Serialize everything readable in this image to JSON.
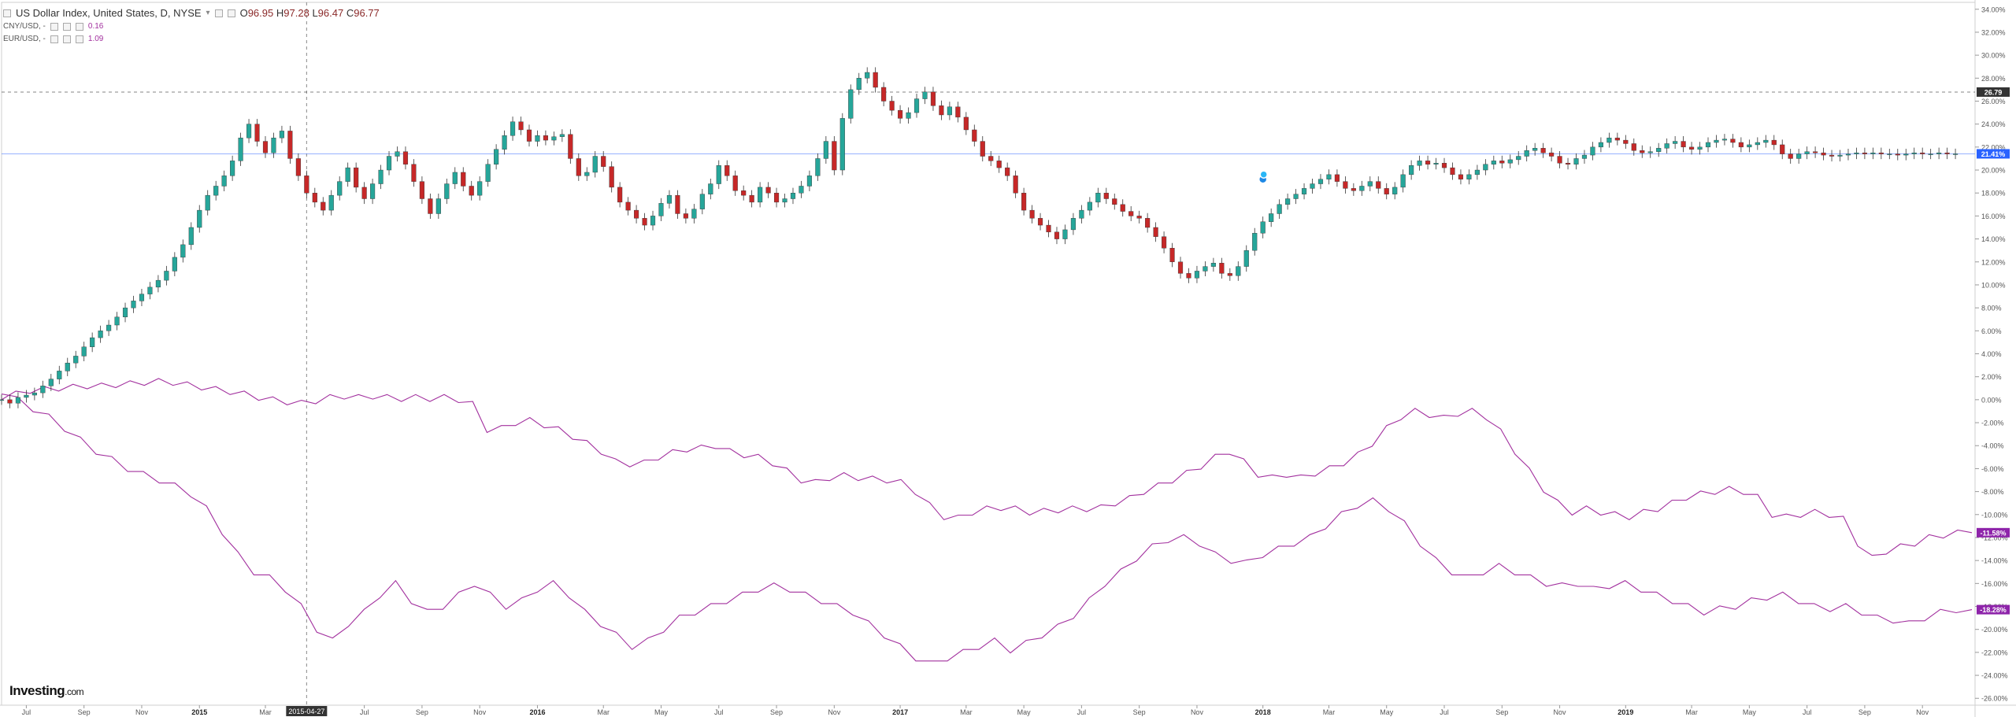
{
  "legend": {
    "main": {
      "title": "US Dollar Index, United States, D, NYSE",
      "open_label": "O",
      "open": "96.95",
      "high_label": "H",
      "high": "97.28",
      "low_label": "L",
      "low": "96.47",
      "close_label": "C",
      "close": "96.77"
    },
    "series": [
      {
        "label": "CNY/USD, -",
        "value": "0.16"
      },
      {
        "label": "EUR/USD, -",
        "value": "1.09"
      }
    ]
  },
  "watermark": {
    "brand": "Investing",
    "suffix": ".com"
  },
  "crosshair": {
    "x_label": "2015-04-27"
  },
  "chart_data": {
    "type": "line",
    "y_unit": "%",
    "y_range": [
      -26,
      34
    ],
    "y_ticks": [
      "34.00%",
      "32.00%",
      "30.00%",
      "28.00%",
      "26.00%",
      "24.00%",
      "22.00%",
      "20.00%",
      "18.00%",
      "16.00%",
      "14.00%",
      "12.00%",
      "10.00%",
      "8.00%",
      "6.00%",
      "4.00%",
      "2.00%",
      "0.00%",
      "-2.00%",
      "-4.00%",
      "-6.00%",
      "-8.00%",
      "-10.00%",
      "-12.00%",
      "-14.00%",
      "-16.00%",
      "-18.00%",
      "-20.00%",
      "-22.00%",
      "-24.00%",
      "-26.00%"
    ],
    "x_ticks": [
      "Jul",
      "Sep",
      "Nov",
      "2015",
      "Mar",
      "2015-04-27",
      "Jul",
      "Sep",
      "Nov",
      "2016",
      "Mar",
      "May",
      "Jul",
      "Sep",
      "Nov",
      "2017",
      "Mar",
      "May",
      "Jul",
      "Sep",
      "Nov",
      "2018",
      "Mar",
      "May",
      "Jul",
      "Sep",
      "Nov",
      "2019",
      "Mar",
      "May",
      "Jul",
      "Sep",
      "Nov"
    ],
    "x_tick_index": [
      3,
      10,
      17,
      24,
      32,
      37,
      44,
      51,
      58,
      65,
      73,
      80,
      87,
      94,
      101,
      109,
      117,
      124,
      131,
      138,
      145,
      153,
      161,
      168,
      175,
      182,
      189,
      197,
      205,
      212,
      219,
      226,
      233
    ],
    "x_count": 240,
    "markers": [
      {
        "label": "26.79",
        "value": 26.79,
        "style": "dashed",
        "color": "#333333"
      },
      {
        "label": "21.41%",
        "value": 21.41,
        "style": "solid",
        "color": "#2962ff"
      }
    ],
    "last_labels": [
      {
        "label": "-11.58%",
        "value": -11.58,
        "color": "#8e24aa"
      },
      {
        "label": "-18.28%",
        "value": -18.28,
        "color": "#8e24aa"
      }
    ],
    "series": [
      {
        "type": "candlestick",
        "up_color": "#26a69a",
        "down_color": "#c62828",
        "values": [
          0.0,
          -0.3,
          0.2,
          0.4,
          0.6,
          1.2,
          1.8,
          2.5,
          3.2,
          3.8,
          4.6,
          5.4,
          6.0,
          6.5,
          7.2,
          8.0,
          8.6,
          9.2,
          9.8,
          10.4,
          11.2,
          12.4,
          13.5,
          15.0,
          16.5,
          17.8,
          18.6,
          19.5,
          20.8,
          22.8,
          24.0,
          22.5,
          21.5,
          22.8,
          23.4,
          21.0,
          19.5,
          18.0,
          17.2,
          16.5,
          17.8,
          19.0,
          20.2,
          18.5,
          17.5,
          18.8,
          20.0,
          21.2,
          21.6,
          20.5,
          19.0,
          17.5,
          16.2,
          17.5,
          18.8,
          19.8,
          18.6,
          17.8,
          19.0,
          20.5,
          21.8,
          23.0,
          24.2,
          23.5,
          22.5,
          23.0,
          22.6,
          22.9,
          23.1,
          21.0,
          19.5,
          19.8,
          21.2,
          20.3,
          18.5,
          17.2,
          16.5,
          15.8,
          15.2,
          16.0,
          17.1,
          17.8,
          16.2,
          15.8,
          16.6,
          17.9,
          18.8,
          20.4,
          19.5,
          18.2,
          17.8,
          17.2,
          18.5,
          18.0,
          17.2,
          17.5,
          18.0,
          18.6,
          19.5,
          21.0,
          22.5,
          20.0,
          24.5,
          27.0,
          28.0,
          28.5,
          27.2,
          26.0,
          25.2,
          24.5,
          25.0,
          26.2,
          26.8,
          25.6,
          24.8,
          25.5,
          24.6,
          23.5,
          22.5,
          21.2,
          20.8,
          20.2,
          19.5,
          18.0,
          16.5,
          15.8,
          15.2,
          14.6,
          14.0,
          14.8,
          15.8,
          16.5,
          17.2,
          18.0,
          17.5,
          17.0,
          16.4,
          16.0,
          15.8,
          15.0,
          14.2,
          13.2,
          12.0,
          11.0,
          10.6,
          11.2,
          11.6,
          11.9,
          11.0,
          10.8,
          11.6,
          13.0,
          14.5,
          15.5,
          16.2,
          17.0,
          17.5,
          17.9,
          18.4,
          18.8,
          19.2,
          19.6,
          19.0,
          18.4,
          18.2,
          18.6,
          19.0,
          18.4,
          17.9,
          18.5,
          19.6,
          20.4,
          20.8,
          20.5,
          20.6,
          20.2,
          19.6,
          19.2,
          19.6,
          20.0,
          20.5,
          20.8,
          20.6,
          20.9,
          21.2,
          21.7,
          21.9,
          21.5,
          21.2,
          20.6,
          20.5,
          21.0,
          21.3,
          22.0,
          22.4,
          22.8,
          22.6,
          22.3,
          21.7,
          21.5,
          21.6,
          21.9,
          22.3,
          22.5,
          22.0,
          21.8,
          22.0,
          22.4,
          22.6,
          22.7,
          22.4,
          22.0,
          22.2,
          22.4,
          22.6,
          22.2,
          21.4,
          21.0,
          21.4,
          21.6,
          21.5,
          21.3,
          21.2,
          21.3,
          21.4,
          21.5,
          21.4,
          21.5,
          21.4,
          21.4,
          21.3,
          21.4,
          21.5,
          21.4,
          21.4,
          21.5,
          21.4,
          21.41
        ]
      },
      {
        "type": "line",
        "name": "CNY/USD",
        "color": "#a2309e",
        "values": [
          0.0,
          0.5,
          0.8,
          0.9,
          1.0,
          1.1,
          1.2,
          1.2,
          1.3,
          1.4,
          1.5,
          1.6,
          1.5,
          1.3,
          1.1,
          0.9,
          0.7,
          0.5,
          0.2,
          0.0,
          -0.2,
          -0.3,
          -0.1,
          0.2,
          0.3,
          0.2,
          0.3,
          0.2,
          0.1,
          0.2,
          0.1,
          0.2,
          0.0,
          -0.4,
          -2.6,
          -2.5,
          -2.0,
          -1.8,
          -2.2,
          -2.6,
          -3.2,
          -3.8,
          -4.5,
          -5.4,
          -5.6,
          -5.5,
          -5.0,
          -4.6,
          -4.3,
          -4.2,
          -4.0,
          -4.5,
          -4.8,
          -5.0,
          -5.5,
          -6.2,
          -7.0,
          -7.2,
          -6.8,
          -6.6,
          -6.8,
          -6.9,
          -7.0,
          -7.2,
          -8.0,
          -9.2,
          -10.2,
          -10.3,
          -9.8,
          -9.5,
          -9.4,
          -9.5,
          -9.8,
          -9.7,
          -9.6,
          -9.5,
          -9.5,
          -9.4,
          -9.0,
          -8.6,
          -8.0,
          -7.5,
          -7.0,
          -6.4,
          -5.8,
          -5.0,
          -4.5,
          -5.4,
          -6.5,
          -6.8,
          -6.5,
          -6.8,
          -6.4,
          -6.0,
          -5.5,
          -4.8,
          -3.8,
          -2.5,
          -1.5,
          -1.0,
          -1.3,
          -1.6,
          -1.2,
          -1.0,
          -1.5,
          -2.8,
          -4.5,
          -6.2,
          -7.8,
          -9.0,
          -9.8,
          -9.5,
          -9.8,
          -10.0,
          -10.2,
          -9.8,
          -9.5,
          -9.0,
          -8.5,
          -8.2,
          -8.0,
          -7.8,
          -8.0,
          -8.5,
          -10.0,
          -10.2,
          -10.0,
          -9.8,
          -10.0,
          -10.4,
          -12.5,
          -13.8,
          -13.2,
          -12.8,
          -12.5,
          -12.0,
          -11.8,
          -11.6,
          -11.58
        ]
      },
      {
        "type": "line",
        "name": "EUR/USD",
        "color": "#a2309e",
        "values": [
          0.5,
          0.0,
          -0.8,
          -1.5,
          -2.5,
          -3.5,
          -4.5,
          -5.2,
          -6.0,
          -6.5,
          -7.0,
          -7.5,
          -8.2,
          -9.5,
          -11.5,
          -13.5,
          -15.0,
          -15.5,
          -16.5,
          -18.0,
          -20.0,
          -21.0,
          -19.5,
          -18.5,
          -17.0,
          -16.0,
          -17.5,
          -18.5,
          -18.0,
          -17.0,
          -16.0,
          -17.0,
          -18.0,
          -17.5,
          -16.5,
          -16.0,
          -17.0,
          -18.5,
          -19.5,
          -20.5,
          -21.5,
          -21.0,
          -20.0,
          -19.0,
          -18.5,
          -18.0,
          -17.5,
          -17.0,
          -16.5,
          -16.2,
          -16.5,
          -17.0,
          -17.5,
          -18.0,
          -18.5,
          -19.5,
          -20.5,
          -21.5,
          -22.5,
          -23.0,
          -22.5,
          -22.0,
          -21.5,
          -21.0,
          -21.8,
          -21.2,
          -20.5,
          -19.8,
          -18.8,
          -17.5,
          -16.0,
          -15.0,
          -13.8,
          -12.8,
          -12.2,
          -12.0,
          -12.5,
          -13.5,
          -14.0,
          -14.2,
          -13.5,
          -13.0,
          -12.5,
          -12.0,
          -11.0,
          -10.0,
          -9.2,
          -8.8,
          -9.5,
          -10.8,
          -12.5,
          -14.0,
          -15.0,
          -15.5,
          -15.0,
          -14.5,
          -15.0,
          -15.5,
          -16.0,
          -16.2,
          -16.0,
          -16.5,
          -16.2,
          -16.0,
          -16.5,
          -17.0,
          -17.5,
          -18.0,
          -18.5,
          -18.2,
          -18.0,
          -17.5,
          -17.2,
          -17.0,
          -17.5,
          -18.0,
          -18.2,
          -18.0,
          -18.5,
          -19.0,
          -19.2,
          -19.5,
          -19.0,
          -18.5,
          -18.3,
          -18.28
        ]
      }
    ]
  }
}
